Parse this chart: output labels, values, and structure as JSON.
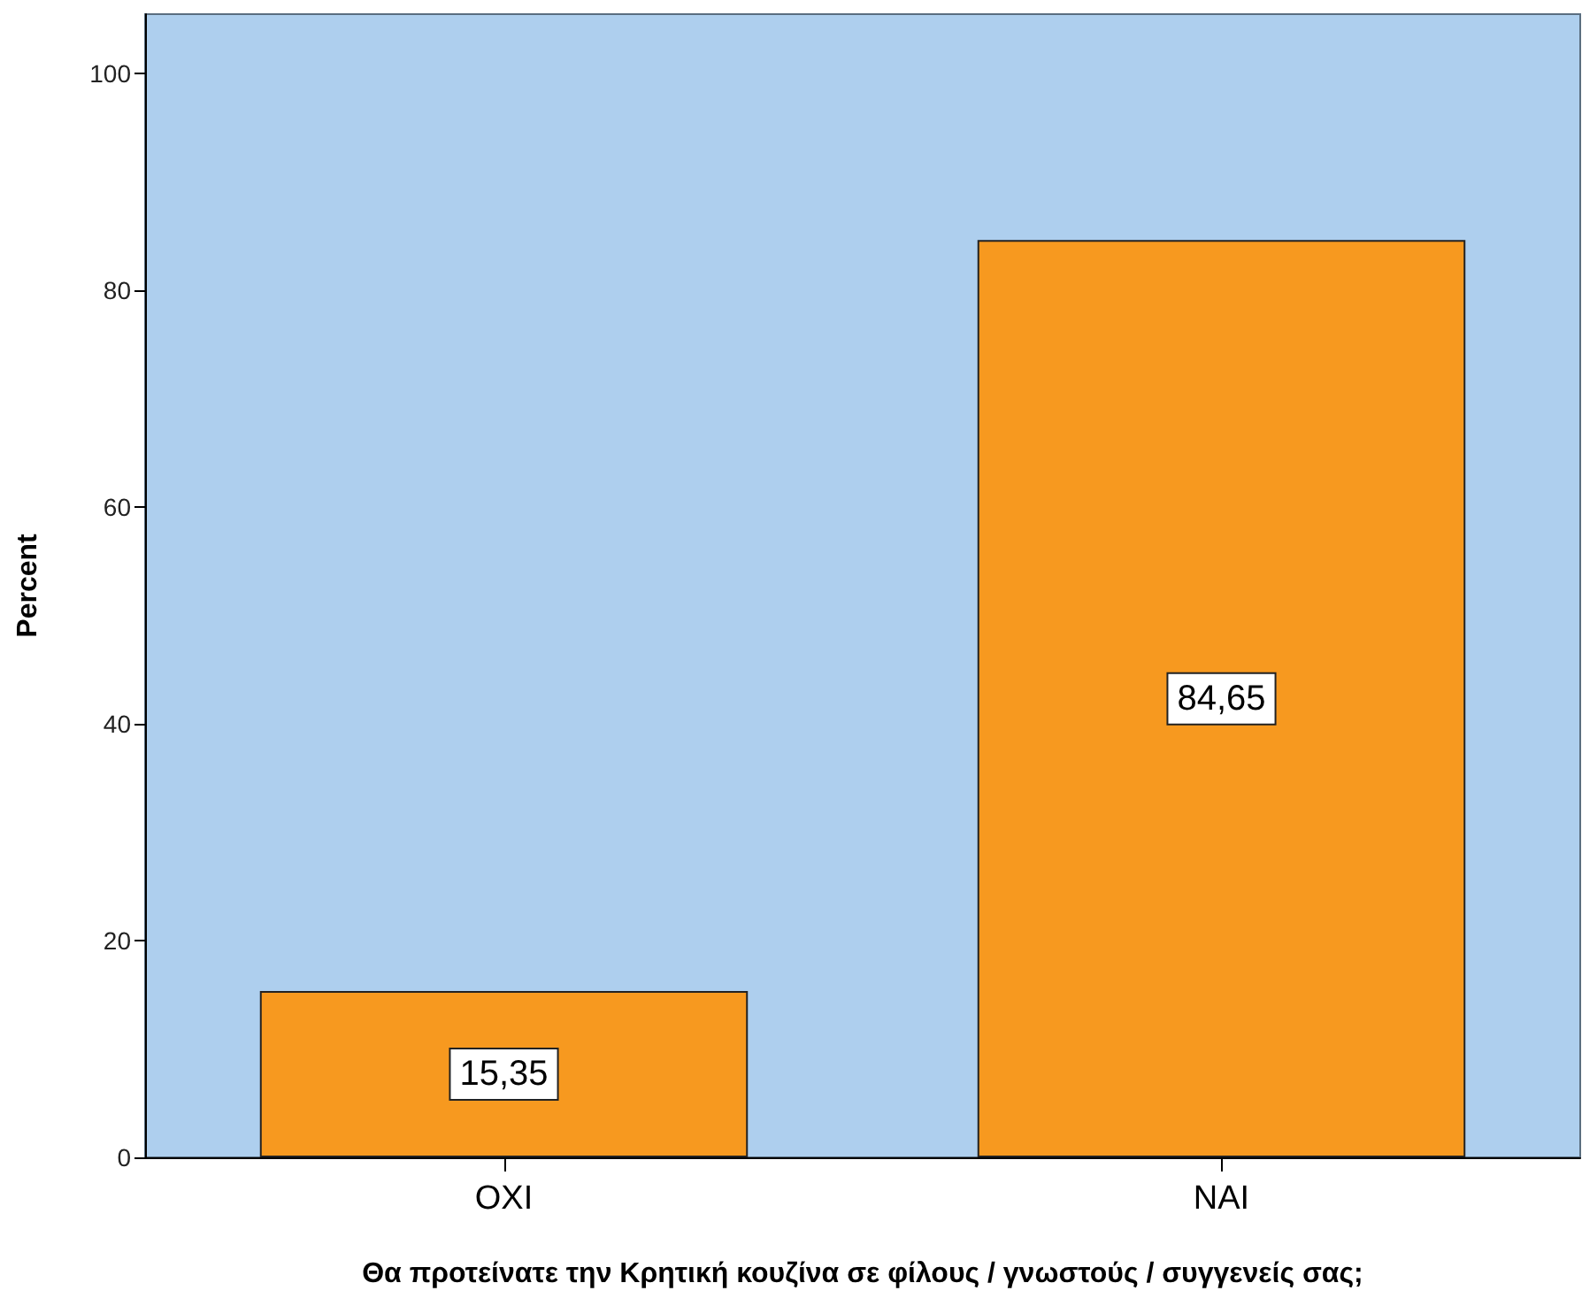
{
  "chart_data": {
    "type": "bar",
    "xlabel": "Θα προτείνατε την Κρητική κουζίνα σε φίλους / γνωστούς / συγγενείς σας;",
    "ylabel": "Percent",
    "categories": [
      "OXI",
      "NAI"
    ],
    "values": [
      15.35,
      84.65
    ],
    "value_labels": [
      "15,35",
      "84,65"
    ],
    "color": "#f7991f",
    "ylim": [
      0,
      105.5
    ],
    "yticks": [
      0,
      20,
      40,
      60,
      80,
      100
    ],
    "grid": false
  }
}
